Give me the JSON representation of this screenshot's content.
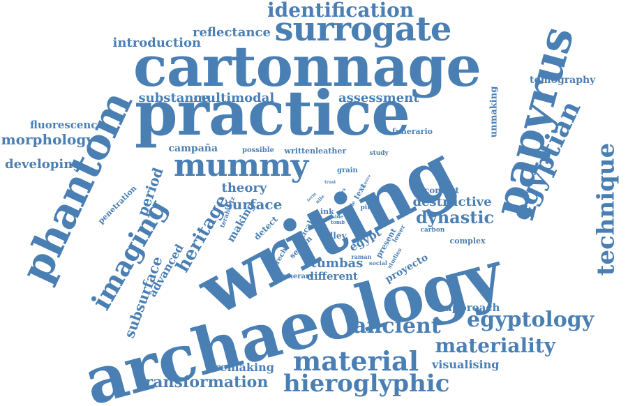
{
  "cloud": {
    "color": "#4a7fb4",
    "words": [
      {
        "text": "archaeology",
        "size": 92,
        "rot": -15
      },
      {
        "text": "writing",
        "size": 100,
        "rot": -28
      },
      {
        "text": "practice",
        "size": 88,
        "rot": 0
      },
      {
        "text": "cartonnage",
        "size": 80,
        "rot": 0
      },
      {
        "text": "papyrus",
        "size": 64,
        "rot": -75
      },
      {
        "text": "phantom",
        "size": 60,
        "rot": -65
      },
      {
        "text": "surrogate",
        "size": 48,
        "rot": 0
      },
      {
        "text": "mummy",
        "size": 44,
        "rot": 0
      },
      {
        "text": "egyptian",
        "size": 38,
        "rot": -65
      },
      {
        "text": "technique",
        "size": 34,
        "rot": -90
      },
      {
        "text": "imaging",
        "size": 38,
        "rot": -60
      },
      {
        "text": "hieroglyphic",
        "size": 34,
        "rot": 0
      },
      {
        "text": "material",
        "size": 38,
        "rot": 0
      },
      {
        "text": "ancient",
        "size": 30,
        "rot": 0
      },
      {
        "text": "egyptology",
        "size": 30,
        "rot": 0
      },
      {
        "text": "materiality",
        "size": 28,
        "rot": 0
      },
      {
        "text": "identification",
        "size": 28,
        "rot": 0
      },
      {
        "text": "heritage",
        "size": 26,
        "rot": -60
      },
      {
        "text": "dynastic",
        "size": 24,
        "rot": 0
      },
      {
        "text": "transformation",
        "size": 22,
        "rot": 0
      },
      {
        "text": "period",
        "size": 20,
        "rot": -70
      },
      {
        "text": "surface",
        "size": 20,
        "rot": 0
      },
      {
        "text": "subsurface",
        "size": 20,
        "rot": -70
      },
      {
        "text": "tumbas",
        "size": 18,
        "rot": 0
      },
      {
        "text": "theory",
        "size": 18,
        "rot": 0
      },
      {
        "text": "introduction",
        "size": 18,
        "rot": 0
      },
      {
        "text": "multimodal",
        "size": 18,
        "rot": 0
      },
      {
        "text": "substance",
        "size": 18,
        "rot": 0
      },
      {
        "text": "assessment",
        "size": 18,
        "rot": 0
      },
      {
        "text": "reflectance",
        "size": 18,
        "rot": 0
      },
      {
        "text": "morphology",
        "size": 20,
        "rot": 0
      },
      {
        "text": "developing",
        "size": 18,
        "rot": 0
      },
      {
        "text": "destructive",
        "size": 18,
        "rot": 0
      },
      {
        "text": "advanced",
        "size": 16,
        "rot": -60
      },
      {
        "text": "visualising",
        "size": 16,
        "rot": 0
      },
      {
        "text": "remaking",
        "size": 16,
        "rot": 0
      },
      {
        "text": "fluorescence",
        "size": 15,
        "rot": 0
      },
      {
        "text": "different",
        "size": 15,
        "rot": 0
      },
      {
        "text": "approach",
        "size": 15,
        "rot": 0
      },
      {
        "text": "making",
        "size": 15,
        "rot": -60
      },
      {
        "text": "egypt",
        "size": 16,
        "rot": -30
      },
      {
        "text": "proyecto",
        "size": 14,
        "rot": -30
      },
      {
        "text": "campaña",
        "size": 14,
        "rot": 0
      },
      {
        "text": "tomography",
        "size": 14,
        "rot": 0
      },
      {
        "text": "unmaking",
        "size": 13,
        "rot": -90
      },
      {
        "text": "penetration",
        "size": 11,
        "rot": -45
      },
      {
        "text": "funerario",
        "size": 11,
        "rot": 0
      },
      {
        "text": "context",
        "size": 12,
        "rot": 0
      },
      {
        "text": "complex",
        "size": 11,
        "rot": 0
      },
      {
        "text": "valley",
        "size": 12,
        "rot": 0
      },
      {
        "text": "detect",
        "size": 12,
        "rot": -45
      },
      {
        "text": "sexton",
        "size": 11,
        "rot": -45
      },
      {
        "text": "optical",
        "size": 11,
        "rot": -60
      },
      {
        "text": "present",
        "size": 11,
        "rot": -60
      },
      {
        "text": "written",
        "size": 11,
        "rot": 0
      },
      {
        "text": "leather",
        "size": 11,
        "rot": 0
      },
      {
        "text": "possible",
        "size": 10,
        "rot": 0
      },
      {
        "text": "study",
        "size": 9,
        "rot": 0
      },
      {
        "text": "grain",
        "size": 10,
        "rot": 0
      },
      {
        "text": "ink",
        "size": 11,
        "rot": 0
      },
      {
        "text": "text",
        "size": 11,
        "rot": -60
      },
      {
        "text": "pilot",
        "size": 9,
        "rot": 0
      },
      {
        "text": "carbon",
        "size": 9,
        "rot": 0
      },
      {
        "text": "funerary",
        "size": 10,
        "rot": 0
      },
      {
        "text": "dstrech",
        "size": 10,
        "rot": -60
      },
      {
        "text": "social",
        "size": 8,
        "rot": 0
      },
      {
        "text": "studies",
        "size": 8,
        "rot": -60
      },
      {
        "text": "lower",
        "size": 9,
        "rot": -60
      },
      {
        "text": "raman",
        "size": 8,
        "rot": 0
      },
      {
        "text": "terahertz",
        "size": 9,
        "rot": -70
      },
      {
        "text": "nile",
        "size": 7,
        "rot": -45
      },
      {
        "text": "able",
        "size": 7,
        "rot": -60
      },
      {
        "text": "side",
        "size": 7,
        "rot": 0
      },
      {
        "text": "tomb",
        "size": 7,
        "rot": 0
      },
      {
        "text": "term",
        "size": 6,
        "rot": -45
      },
      {
        "text": "trust",
        "size": 6,
        "rot": 0
      },
      {
        "text": "back",
        "size": 5,
        "rot": -45
      },
      {
        "text": "acquire",
        "size": 5,
        "rot": -60
      }
    ]
  }
}
